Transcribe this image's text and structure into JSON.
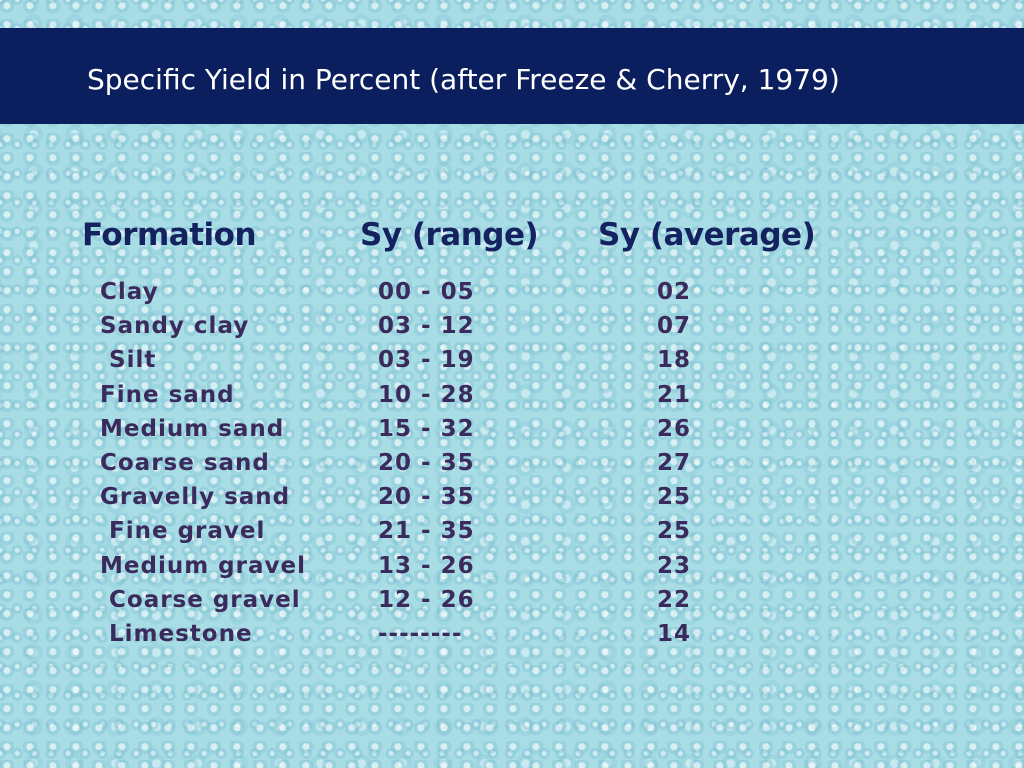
{
  "header": {
    "title": "Specific Yield in Percent (after Freeze & Cherry, 1979)"
  },
  "table": {
    "columns": [
      "Formation",
      "Sy (range)",
      "Sy (average)"
    ],
    "rows": [
      [
        "Clay",
        "00 - 05",
        "02"
      ],
      [
        "Sandy clay",
        "03 - 12",
        "07"
      ],
      [
        " Silt",
        "03 - 19",
        "18"
      ],
      [
        "Fine sand",
        "10 - 28",
        "21"
      ],
      [
        "Medium sand",
        "15 - 32",
        "26"
      ],
      [
        "Coarse sand",
        "20 - 35",
        "27"
      ],
      [
        "Gravelly sand",
        "20 - 35",
        "25"
      ],
      [
        " Fine gravel",
        "21 - 35",
        "25"
      ],
      [
        "Medium gravel",
        "13 - 26",
        "23"
      ],
      [
        " Coarse gravel",
        "12 - 26",
        "22"
      ],
      [
        " Limestone",
        "--------",
        "14"
      ]
    ]
  }
}
